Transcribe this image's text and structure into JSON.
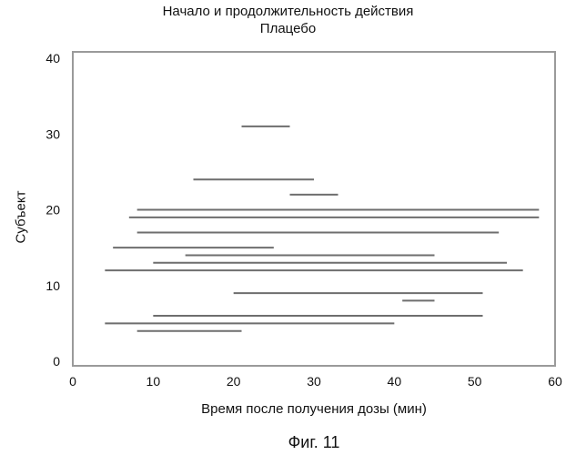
{
  "chart_data": {
    "type": "range",
    "title": "Начало и продолжительность действия",
    "subtitle": "Плацебо",
    "xlabel": "Время после получения дозы (мин)",
    "ylabel": "Субъект",
    "xlim": [
      0,
      60
    ],
    "ylim": [
      0,
      40
    ],
    "xticks": [
      "0",
      "10",
      "20",
      "30",
      "40",
      "50",
      "60"
    ],
    "yticks": [
      "0",
      "10",
      "20",
      "30",
      "40"
    ],
    "grid": false,
    "series": [
      {
        "subjects": [
          31,
          24,
          22,
          20,
          19,
          17,
          15,
          14,
          13,
          12,
          9,
          8,
          6,
          5,
          4
        ],
        "start": [
          21,
          15,
          27,
          8,
          7,
          8,
          5,
          14,
          10,
          4,
          20,
          41,
          10,
          4,
          8
        ],
        "end": [
          27,
          30,
          33,
          58,
          58,
          53,
          25,
          45,
          54,
          56,
          51,
          45,
          51,
          40,
          21
        ]
      }
    ],
    "caption": "Фиг. 11"
  }
}
